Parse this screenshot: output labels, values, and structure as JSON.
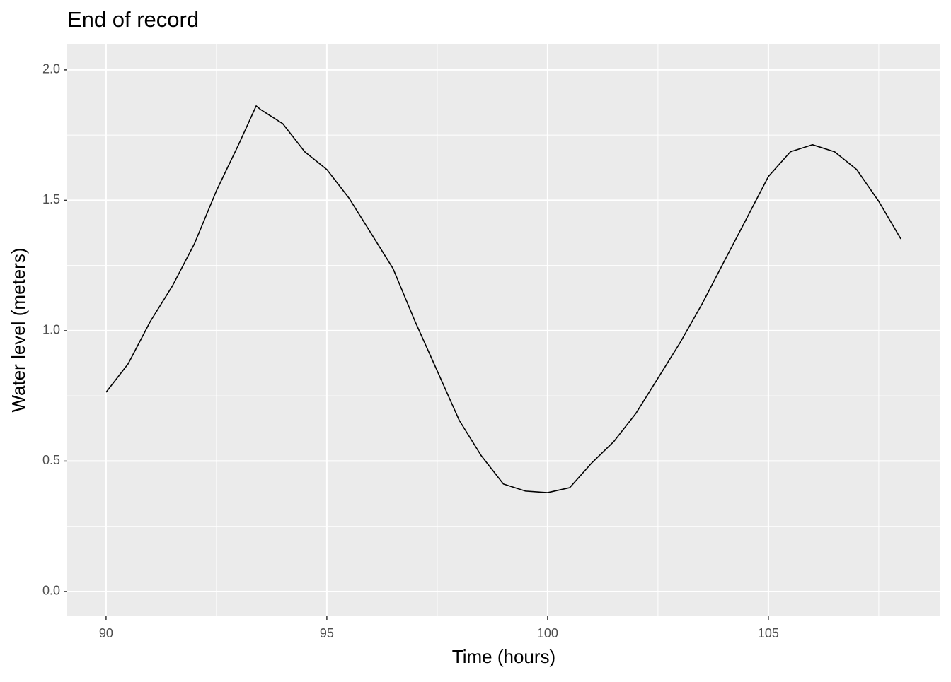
{
  "chart_data": {
    "type": "line",
    "title": "End of record",
    "x_label": "Time (hours)",
    "y_label": "Water level (meters)",
    "x": [
      90.0,
      90.5,
      91.0,
      91.5,
      92.0,
      92.5,
      93.0,
      93.4,
      93.5,
      94.0,
      94.5,
      95.0,
      95.5,
      96.0,
      96.5,
      97.0,
      97.5,
      98.0,
      98.5,
      99.0,
      99.5,
      100.0,
      100.5,
      101.0,
      101.5,
      102.0,
      102.5,
      103.0,
      103.5,
      104.0,
      104.5,
      105.0,
      105.5,
      106.0,
      106.5,
      107.0,
      107.5,
      108.0
    ],
    "series": [
      {
        "color": "#000000",
        "values": [
          0.764,
          0.873,
          1.035,
          1.171,
          1.333,
          1.537,
          1.713,
          1.862,
          1.848,
          1.794,
          1.686,
          1.618,
          1.509,
          1.374,
          1.238,
          1.035,
          0.846,
          0.656,
          0.52,
          0.412,
          0.385,
          0.379,
          0.398,
          0.493,
          0.575,
          0.683,
          0.818,
          0.954,
          1.103,
          1.266,
          1.428,
          1.591,
          1.686,
          1.713,
          1.686,
          1.618,
          1.496,
          1.352
        ]
      }
    ],
    "xlim": [
      89.12,
      108.88
    ],
    "ylim": [
      -0.095,
      2.1
    ],
    "xticks": [
      90,
      95,
      100,
      105
    ],
    "yticks": [
      {
        "value": 0,
        "label": "0.0"
      },
      0.5,
      {
        "value": 1,
        "label": "1.0"
      },
      1.5,
      {
        "value": 2,
        "label": "2.0"
      }
    ],
    "grid": true
  }
}
